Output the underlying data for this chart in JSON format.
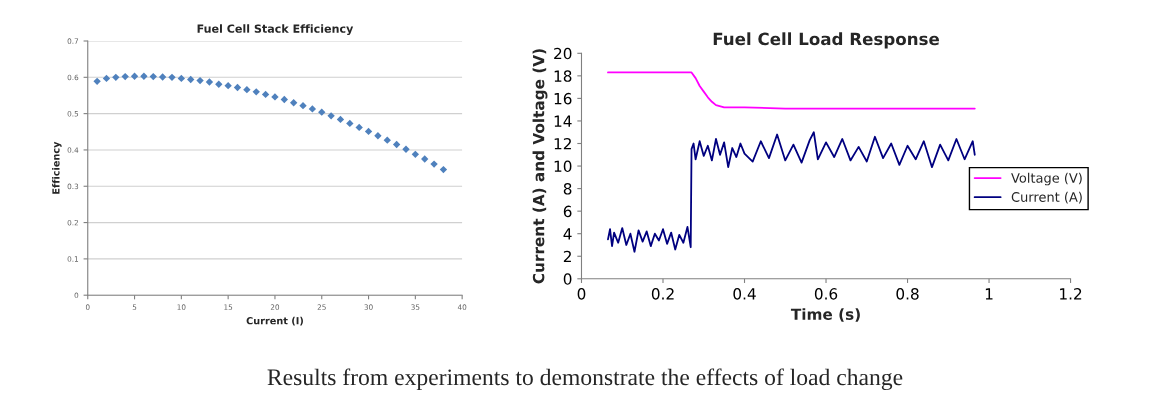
{
  "chart_data": [
    {
      "type": "scatter",
      "title": "Fuel Cell Stack Efficiency",
      "xlabel": "Current (I)",
      "ylabel": "Efficiency",
      "x": [
        1,
        2,
        3,
        4,
        5,
        6,
        7,
        8,
        9,
        10,
        11,
        12,
        13,
        14,
        15,
        16,
        17,
        18,
        19,
        20,
        21,
        22,
        23,
        24,
        25,
        26,
        27,
        28,
        29,
        30,
        31,
        32,
        33,
        34,
        35,
        36,
        37,
        38
      ],
      "series": [
        {
          "color": "#4f81bd",
          "values": [
            0.589,
            0.597,
            0.6,
            0.602,
            0.603,
            0.603,
            0.602,
            0.601,
            0.6,
            0.597,
            0.594,
            0.591,
            0.587,
            0.581,
            0.577,
            0.572,
            0.566,
            0.56,
            0.553,
            0.546,
            0.539,
            0.53,
            0.522,
            0.513,
            0.504,
            0.494,
            0.484,
            0.473,
            0.462,
            0.451,
            0.439,
            0.427,
            0.415,
            0.402,
            0.388,
            0.375,
            0.361,
            0.346
          ]
        }
      ],
      "xlim": [
        0,
        40
      ],
      "xticks": [
        0,
        5,
        10,
        15,
        20,
        25,
        30,
        35,
        40
      ],
      "ylim": [
        0,
        0.7
      ],
      "yticks": [
        0,
        0.1,
        0.2,
        0.3,
        0.4,
        0.5,
        0.6,
        0.7
      ],
      "grid": "y",
      "marker": "diamond",
      "legend": false,
      "annotations": [
        "Results from experiments to demonstrate the effects of load change"
      ]
    },
    {
      "type": "line",
      "title": "Fuel Cell Load Response",
      "xlabel": "Time (s)",
      "ylabel": "Current (A) and Voltage (V)",
      "series": [
        {
          "name": "Voltage (V)",
          "color": "#ff00ff",
          "x": [
            0.065,
            0.1,
            0.15,
            0.2,
            0.27,
            0.28,
            0.29,
            0.3,
            0.31,
            0.32,
            0.33,
            0.35,
            0.4,
            0.5,
            0.6,
            0.7,
            0.8,
            0.9,
            0.965
          ],
          "values": [
            18.3,
            18.3,
            18.3,
            18.3,
            18.3,
            17.8,
            17.1,
            16.6,
            16.1,
            15.7,
            15.4,
            15.2,
            15.2,
            15.1,
            15.1,
            15.1,
            15.1,
            15.1,
            15.1
          ]
        },
        {
          "name": "Current (A)",
          "color": "#000080",
          "x": [
            0.065,
            0.07,
            0.075,
            0.08,
            0.09,
            0.1,
            0.11,
            0.12,
            0.13,
            0.14,
            0.15,
            0.16,
            0.17,
            0.18,
            0.19,
            0.2,
            0.21,
            0.22,
            0.23,
            0.24,
            0.25,
            0.26,
            0.268,
            0.27,
            0.275,
            0.28,
            0.29,
            0.3,
            0.31,
            0.32,
            0.33,
            0.34,
            0.35,
            0.36,
            0.37,
            0.38,
            0.39,
            0.4,
            0.42,
            0.44,
            0.46,
            0.48,
            0.5,
            0.52,
            0.54,
            0.56,
            0.57,
            0.58,
            0.6,
            0.62,
            0.64,
            0.66,
            0.68,
            0.7,
            0.72,
            0.74,
            0.76,
            0.78,
            0.8,
            0.82,
            0.84,
            0.86,
            0.88,
            0.9,
            0.92,
            0.94,
            0.96,
            0.965
          ],
          "values": [
            3.5,
            4.4,
            2.9,
            4.1,
            3.2,
            4.5,
            3.0,
            4.0,
            2.4,
            4.3,
            3.3,
            4.2,
            2.9,
            4.0,
            3.4,
            4.4,
            3.1,
            4.1,
            2.6,
            3.9,
            3.2,
            4.6,
            2.8,
            11.5,
            12.0,
            10.6,
            12.2,
            10.9,
            11.8,
            10.5,
            12.4,
            11.0,
            12.1,
            9.9,
            11.6,
            10.8,
            12.0,
            11.1,
            10.4,
            12.2,
            10.7,
            12.8,
            10.5,
            11.9,
            10.3,
            12.3,
            13.0,
            10.6,
            12.1,
            10.8,
            12.4,
            10.5,
            11.7,
            10.4,
            12.6,
            10.7,
            12.0,
            10.1,
            11.8,
            10.6,
            12.2,
            9.9,
            11.9,
            10.5,
            12.4,
            10.6,
            12.2,
            11.0
          ]
        }
      ],
      "xlim": [
        0,
        1.2
      ],
      "xticks": [
        0,
        0.2,
        0.4,
        0.6,
        0.8,
        1,
        1.2
      ],
      "ylim": [
        0,
        20
      ],
      "yticks": [
        0,
        2,
        4,
        6,
        8,
        10,
        12,
        14,
        16,
        18,
        20
      ],
      "grid": false,
      "legend": "right"
    }
  ]
}
